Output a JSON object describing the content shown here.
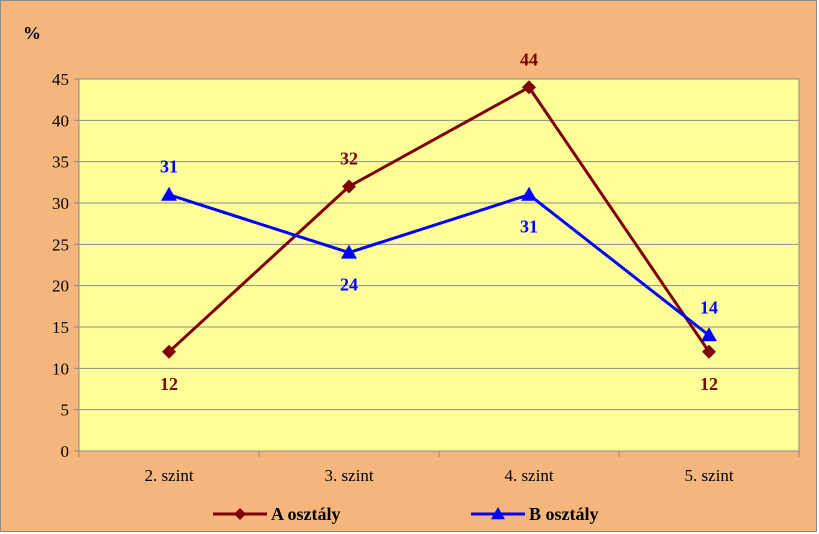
{
  "chart_data": {
    "type": "line",
    "title": "",
    "xlabel": "",
    "ylabel": "%",
    "categories": [
      "2. szint",
      "3. szint",
      "4. szint",
      "5. szint"
    ],
    "ylim": [
      0,
      45
    ],
    "ytick_step": 5,
    "yticks": [
      "0",
      "5",
      "10",
      "15",
      "20",
      "25",
      "30",
      "35",
      "40",
      "45"
    ],
    "grid": true,
    "legend_position": "bottom",
    "series": [
      {
        "name": "A osztály",
        "values": [
          12,
          32,
          44,
          12
        ],
        "color": "#7f0000",
        "marker": "diamond"
      },
      {
        "name": "B osztály",
        "values": [
          31,
          24,
          31,
          14
        ],
        "color": "#0000ff",
        "marker": "triangle"
      }
    ],
    "background_color": "#f4b67c",
    "plot_color": "#ffff99"
  }
}
